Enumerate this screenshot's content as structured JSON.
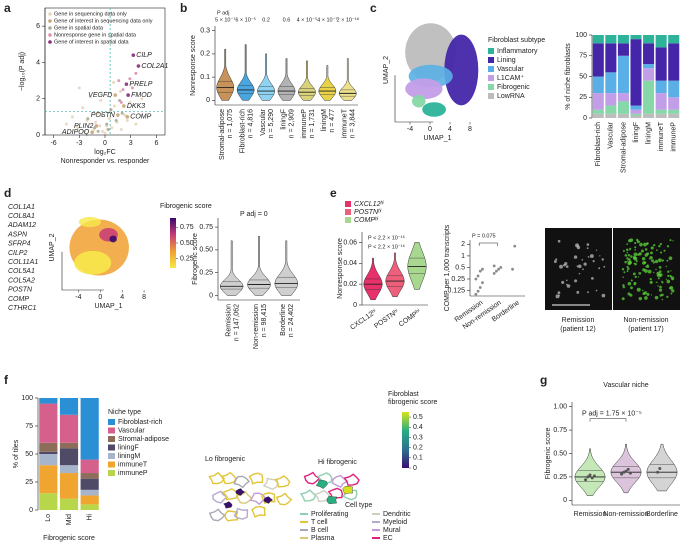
{
  "panels": {
    "letters": [
      "a",
      "b",
      "c",
      "d",
      "e",
      "f",
      "g"
    ]
  },
  "gene_list": [
    "COL1A1",
    "COL8A1",
    "ADAM12",
    "ASPN",
    "SFRP4",
    "CILP2",
    "COL11A1",
    "COL5A1",
    "COL5A2",
    "POSTN",
    "COMP",
    "CTHRC1"
  ],
  "microscopy": {
    "captions": [
      {
        "group": "Remission",
        "patient": "(patient 12)"
      },
      {
        "group": "Non-remission",
        "patient": "(patient 17)"
      }
    ]
  },
  "spatial": {
    "labels": [
      "Lo fibrogenic",
      "Hi fibrogenic"
    ],
    "colorbar": {
      "title_lines": [
        "Fibroblast",
        "fibrogenic score"
      ],
      "lim": [
        0,
        0.55
      ],
      "ticks": [
        0,
        0.1,
        0.2,
        0.3,
        0.4,
        0.5
      ],
      "colors": [
        "#3b0f70",
        "#2c728e",
        "#28ae80",
        "#d8e219"
      ]
    },
    "legend_title": "Cell type",
    "cell_types": [
      {
        "name": "Proliferating",
        "color": "#8fcfae"
      },
      {
        "name": "T cell",
        "color": "#e2c43a"
      },
      {
        "name": "B cell",
        "color": "#a7a7b8"
      },
      {
        "name": "Plasma",
        "color": "#d8c878"
      },
      {
        "name": "Dendritic",
        "color": "#cfcfc0"
      },
      {
        "name": "Myeloid",
        "color": "#b4a9cf"
      },
      {
        "name": "Mural",
        "color": "#c49ad8"
      },
      {
        "name": "EC",
        "color": "#e0207c"
      }
    ]
  },
  "chart_data": [
    {
      "type": "scatter",
      "xlabel": "log₂FC",
      "xlabel2": "Nonresponder vs. responder",
      "ylabel": "−log₁₀(P adj)",
      "xlim": [
        -7,
        7
      ],
      "ylim": [
        0,
        7
      ],
      "xticks": [
        -6,
        -3,
        0,
        3,
        6
      ],
      "yticks": [
        0,
        2,
        4,
        6
      ],
      "vlines": [
        0.6
      ],
      "hlines": [
        1.3
      ],
      "legend": "top-left",
      "series": [
        {
          "name": "Gene in sequencing data only",
          "color": "#e6d6bc",
          "x": [
            -4.5,
            -3.8,
            -3.2,
            -2.6,
            -2.1,
            -1.7,
            -1.3,
            -0.9,
            -0.6,
            -0.3,
            0,
            0.3,
            0.5,
            0.8,
            1.1,
            1.4,
            1.8,
            2.3,
            2.9,
            3.6,
            4.3,
            -2.4,
            -1.1,
            0.2,
            1.0,
            1.9,
            -3.0,
            -0.5,
            0.6,
            2.6
          ],
          "y": [
            0.6,
            1.0,
            0.4,
            1.5,
            0.8,
            2.1,
            0.3,
            1.2,
            0.5,
            0.2,
            0.1,
            0.3,
            0.9,
            0.4,
            1.6,
            0.7,
            2.4,
            1.1,
            1.8,
            0.6,
            2.0,
            0.2,
            0.7,
            0.5,
            2.9,
            0.3,
            2.6,
            1.9,
            1.3,
            0.8
          ]
        },
        {
          "name": "Gene of interest in sequencing data only",
          "color": "#c8a474",
          "x": [
            1.2,
            2.2,
            2.6,
            1.5,
            -1.0,
            -1.5
          ],
          "y": [
            2.2,
            1.6,
            1.0,
            1.1,
            0.5,
            0.15
          ],
          "labels": [
            "VEGFD",
            "DKK3",
            "COMP",
            "POSTN",
            "PLIN2",
            "ADIPOQ"
          ]
        },
        {
          "name": "Gene in spatial data",
          "color": "#a9a99a",
          "x": [
            -2.0,
            -1.2,
            -0.4,
            0.2,
            0.7,
            1.3,
            1.7,
            2.0,
            -0.8,
            0.4
          ],
          "y": [
            0.9,
            0.4,
            1.1,
            0.6,
            1.4,
            0.8,
            1.9,
            1.2,
            0.2,
            0.3
          ]
        },
        {
          "name": "Nonresponse gene in spatial data",
          "color": "#e08fb0",
          "x": [
            1.6,
            2.1,
            2.9,
            3.2,
            1.9,
            3.6
          ],
          "y": [
            3.0,
            2.5,
            3.1,
            2.6,
            1.8,
            3.4
          ]
        },
        {
          "name": "Gene of interest in spatial data",
          "color": "#8a2a78",
          "x": [
            3.3,
            3.9,
            2.5,
            2.7
          ],
          "y": [
            4.4,
            3.8,
            2.8,
            2.2
          ],
          "labels": [
            "CILP",
            "COL2A1",
            "PRELP",
            "FMOD"
          ]
        }
      ]
    },
    {
      "type": "violin",
      "ylabel": "Nonresponse score",
      "ylim": [
        -0.02,
        0.32
      ],
      "yticks": [
        0,
        0.1,
        0.2,
        0.3
      ],
      "categories": [
        "Stromal-adipose",
        "Fibroblast-rich",
        "Vascular",
        "liningF",
        "immuneP",
        "liningM",
        "immuneT"
      ],
      "n_labels": [
        "n = 1,075",
        "n = 4,816",
        "n = 5,290",
        "n = 2,909",
        "n = 1,731",
        "n = 477",
        "n = 3,844"
      ],
      "colors": [
        "#c8935a",
        "#4aa6e0",
        "#8fd3f2",
        "#b3b3b3",
        "#d9d27a",
        "#e8d24a",
        "#ece08c"
      ],
      "low": [
        0,
        0,
        0,
        0,
        0,
        0,
        0
      ],
      "q1": [
        0.035,
        0.03,
        0.025,
        0.025,
        0.02,
        0.025,
        0.018
      ],
      "median": [
        0.055,
        0.045,
        0.04,
        0.04,
        0.035,
        0.04,
        0.03
      ],
      "q3": [
        0.08,
        0.065,
        0.06,
        0.06,
        0.05,
        0.055,
        0.045
      ],
      "high": [
        0.22,
        0.24,
        0.2,
        0.18,
        0.17,
        0.15,
        0.18
      ],
      "p_title": "P adj",
      "p_labels": [
        "5 × 10⁻⁷",
        "6 × 10⁻⁵",
        "0.2",
        "0.6",
        "4 × 10⁻⁵",
        "4 × 10⁻⁷",
        "2 × 10⁻¹⁸"
      ]
    },
    {
      "type": "umap",
      "xlabel": "UMAP_1",
      "ylabel": "UMAP_2",
      "xlim": [
        -7,
        10
      ],
      "xticks": [
        -4,
        0,
        4,
        8
      ],
      "legend_title": "Fibroblast subtype",
      "series": [
        {
          "name": "Inflammatory",
          "color": "#2db39a"
        },
        {
          "name": "Lining",
          "color": "#4526a8"
        },
        {
          "name": "Vascular",
          "color": "#5ab0e6"
        },
        {
          "name": "L1CAM⁺",
          "color": "#c39ee8"
        },
        {
          "name": "Fibrogenic",
          "color": "#86d8a8"
        },
        {
          "name": "LowRNA",
          "color": "#bdbdbd"
        }
      ]
    },
    {
      "type": "stacked_bar",
      "ylabel": "% of niche fibroblasts",
      "ylim": [
        0,
        100
      ],
      "yticks": [
        0,
        25,
        50,
        75,
        100
      ],
      "categories": [
        "Fibroblast-rich",
        "Vascular",
        "Stromal-adipose",
        "liningF",
        "liningM",
        "immuneT",
        "immuneP"
      ],
      "series": [
        {
          "name": "Inflammatory",
          "color": "#2db39a",
          "values": [
            10,
            10,
            10,
            5,
            10,
            15,
            10
          ]
        },
        {
          "name": "Lining",
          "color": "#4526a8",
          "values": [
            40,
            35,
            15,
            80,
            25,
            40,
            45
          ]
        },
        {
          "name": "Vascular",
          "color": "#5ab0e6",
          "values": [
            20,
            25,
            45,
            5,
            5,
            15,
            20
          ]
        },
        {
          "name": "L1CAM⁺",
          "color": "#c39ee8",
          "values": [
            20,
            15,
            10,
            5,
            15,
            20,
            15
          ]
        },
        {
          "name": "Fibrogenic",
          "color": "#86d8a8",
          "values": [
            5,
            10,
            15,
            2,
            40,
            5,
            5
          ]
        },
        {
          "name": "LowRNA",
          "color": "#bdbdbd",
          "values": [
            5,
            5,
            5,
            3,
            5,
            5,
            5
          ]
        }
      ]
    },
    {
      "type": "umap",
      "xlabel": "UMAP_1",
      "ylabel": "UMAP_2",
      "xlim": [
        -7,
        10
      ],
      "xticks": [
        -4,
        0,
        4,
        8
      ],
      "colorbar": {
        "title": "Fibrogenic score",
        "lim": [
          0.1,
          0.9
        ],
        "ticks": [
          0.25,
          {
            "value": 0.5,
            "label": "0.50"
          },
          0.75
        ],
        "colors": [
          "#f7e84a",
          "#f0a030",
          "#c83a78",
          "#3a0a6a"
        ]
      }
    },
    {
      "type": "violin",
      "ylabel": "Fibrogenic score",
      "ylim": [
        -0.05,
        0.85
      ],
      "yticks": [
        0,
        0.25,
        {
          "value": 0.5,
          "label": "0.50"
        },
        0.75
      ],
      "categories": [
        "Remission",
        "Non-remission",
        "Borderline"
      ],
      "n_labels": [
        "n = 147,062",
        "n = 98,415",
        "n = 24,402"
      ],
      "colors": [
        "#cfcfcf",
        "#cfcfcf",
        "#cfcfcf"
      ],
      "low": [
        0,
        0,
        0
      ],
      "q1": [
        0.07,
        0.08,
        0.09
      ],
      "median": [
        0.1,
        0.12,
        0.13
      ],
      "q3": [
        0.15,
        0.17,
        0.2
      ],
      "high": [
        0.6,
        0.65,
        0.6
      ],
      "p_title": "P adj = 0"
    },
    {
      "type": "violin",
      "ylabel": "Nonresponse score",
      "ylim": [
        0,
        0.07
      ],
      "yticks": [
        0,
        0.02,
        0.04,
        0.06
      ],
      "categories": [
        "CXCL12ʰⁱ",
        "POSTNʰⁱ",
        "COMPʰⁱ"
      ],
      "colors": [
        "#e8306a",
        "#ee5f7c",
        "#a8d890"
      ],
      "legend": true,
      "low": [
        0.005,
        0.008,
        0.015
      ],
      "q1": [
        0.015,
        0.018,
        0.03
      ],
      "median": [
        0.02,
        0.023,
        0.037
      ],
      "q3": [
        0.025,
        0.028,
        0.045
      ],
      "high": [
        0.045,
        0.05,
        0.06
      ],
      "annotations": [
        "P < 2.2 × 10⁻¹⁶",
        "P < 2.2 × 10⁻¹⁶"
      ]
    },
    {
      "type": "strip",
      "ylabel": "COMP per 1,000 transcripts",
      "log": true,
      "ylim": [
        0.09,
        2.6
      ],
      "yticks": [
        0.125,
        0.25,
        0.5,
        1,
        2
      ],
      "categories": [
        "Remission",
        "Non-remission",
        "Borderline"
      ],
      "color": "#8a8a8a",
      "values": [
        [
          0.1,
          0.12,
          0.15,
          0.2,
          0.25,
          0.3,
          0.4,
          0.45
        ],
        [
          0.35,
          0.4,
          0.45,
          0.5,
          0.55
        ],
        [
          0.45,
          1.8
        ]
      ],
      "annotation": "P = 0.075"
    },
    {
      "type": "stacked_bar",
      "ylabel": "% of tiles",
      "xlabel": "Fibrogenic score",
      "ylim": [
        0,
        100
      ],
      "yticks": [
        0,
        25,
        50,
        75,
        100
      ],
      "categories": [
        "Lo",
        "Mid",
        "Hi"
      ],
      "legend_title": "Niche type",
      "series": [
        {
          "name": "Fibroblast-rich",
          "color": "#2b8fd6",
          "values": [
            5,
            15,
            55
          ]
        },
        {
          "name": "Vascular",
          "color": "#d6608c",
          "values": [
            35,
            25,
            12
          ]
        },
        {
          "name": "Stromal-adipose",
          "color": "#8c6d5a",
          "values": [
            8,
            5,
            5
          ]
        },
        {
          "name": "liningF",
          "color": "#4f4a66",
          "values": [
            2,
            15,
            10
          ]
        },
        {
          "name": "liningM",
          "color": "#a6b4cc",
          "values": [
            10,
            7,
            5
          ]
        },
        {
          "name": "immuneT",
          "color": "#f0a530",
          "values": [
            25,
            23,
            8
          ]
        },
        {
          "name": "immuneP",
          "color": "#b8d64a",
          "values": [
            15,
            10,
            5
          ]
        }
      ]
    },
    {
      "type": "violin",
      "title": "Vascular niche",
      "ylabel": "Fibrogenic score",
      "ylim": [
        -0.05,
        1.05
      ],
      "yticks": [
        0,
        0.25,
        {
          "value": 0.5,
          "label": "0.50"
        },
        0.75,
        {
          "value": 1,
          "label": "1.00"
        }
      ],
      "categories": [
        "Remission",
        "Non-remission",
        "Borderline"
      ],
      "colors": [
        "#c5e8b8",
        "#dcc4dc",
        "#d4d4d4"
      ],
      "low": [
        0.05,
        0.08,
        0.1
      ],
      "q1": [
        0.2,
        0.24,
        0.24
      ],
      "median": [
        0.25,
        0.3,
        0.3
      ],
      "q3": [
        0.32,
        0.36,
        0.38
      ],
      "high": [
        0.55,
        0.6,
        0.6
      ],
      "points": [
        [
          0.22,
          0.25,
          0.27,
          0.24,
          0.26
        ],
        [
          0.28,
          0.3,
          0.31,
          0.33,
          0.29
        ],
        [
          0.3,
          0.34
        ]
      ],
      "p_title": "P adj = 1.75 × 10⁻⁵"
    }
  ]
}
